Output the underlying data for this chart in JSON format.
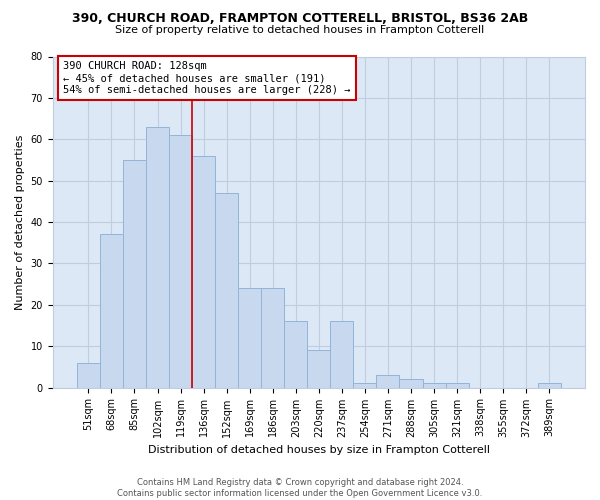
{
  "title_line1": "390, CHURCH ROAD, FRAMPTON COTTERELL, BRISTOL, BS36 2AB",
  "title_line2": "Size of property relative to detached houses in Frampton Cotterell",
  "xlabel": "Distribution of detached houses by size in Frampton Cotterell",
  "ylabel": "Number of detached properties",
  "bar_labels": [
    "51sqm",
    "68sqm",
    "85sqm",
    "102sqm",
    "119sqm",
    "136sqm",
    "152sqm",
    "169sqm",
    "186sqm",
    "203sqm",
    "220sqm",
    "237sqm",
    "254sqm",
    "271sqm",
    "288sqm",
    "305sqm",
    "321sqm",
    "338sqm",
    "355sqm",
    "372sqm",
    "389sqm"
  ],
  "bar_values": [
    6,
    37,
    55,
    63,
    61,
    56,
    47,
    24,
    24,
    16,
    9,
    16,
    1,
    3,
    2,
    1,
    1,
    0,
    0,
    0,
    1
  ],
  "bar_color": "#c8d8ee",
  "bar_edge_color": "#92b4d8",
  "ref_line_x": 4.5,
  "ref_line_color": "#cc0000",
  "annotation_title": "390 CHURCH ROAD: 128sqm",
  "annotation_line1": "← 45% of detached houses are smaller (191)",
  "annotation_line2": "54% of semi-detached houses are larger (228) →",
  "annotation_box_facecolor": "#ffffff",
  "annotation_box_edgecolor": "#cc0000",
  "ylim": [
    0,
    80
  ],
  "yticks": [
    0,
    10,
    20,
    30,
    40,
    50,
    60,
    70,
    80
  ],
  "grid_color": "#c0cce0",
  "plot_bg_color": "#dce8f5",
  "figure_bg_color": "#ffffff",
  "footer_line1": "Contains HM Land Registry data © Crown copyright and database right 2024.",
  "footer_line2": "Contains public sector information licensed under the Open Government Licence v3.0.",
  "title_fontsize": 9,
  "subtitle_fontsize": 8,
  "ylabel_fontsize": 8,
  "xlabel_fontsize": 8,
  "tick_fontsize": 7,
  "footer_fontsize": 6
}
